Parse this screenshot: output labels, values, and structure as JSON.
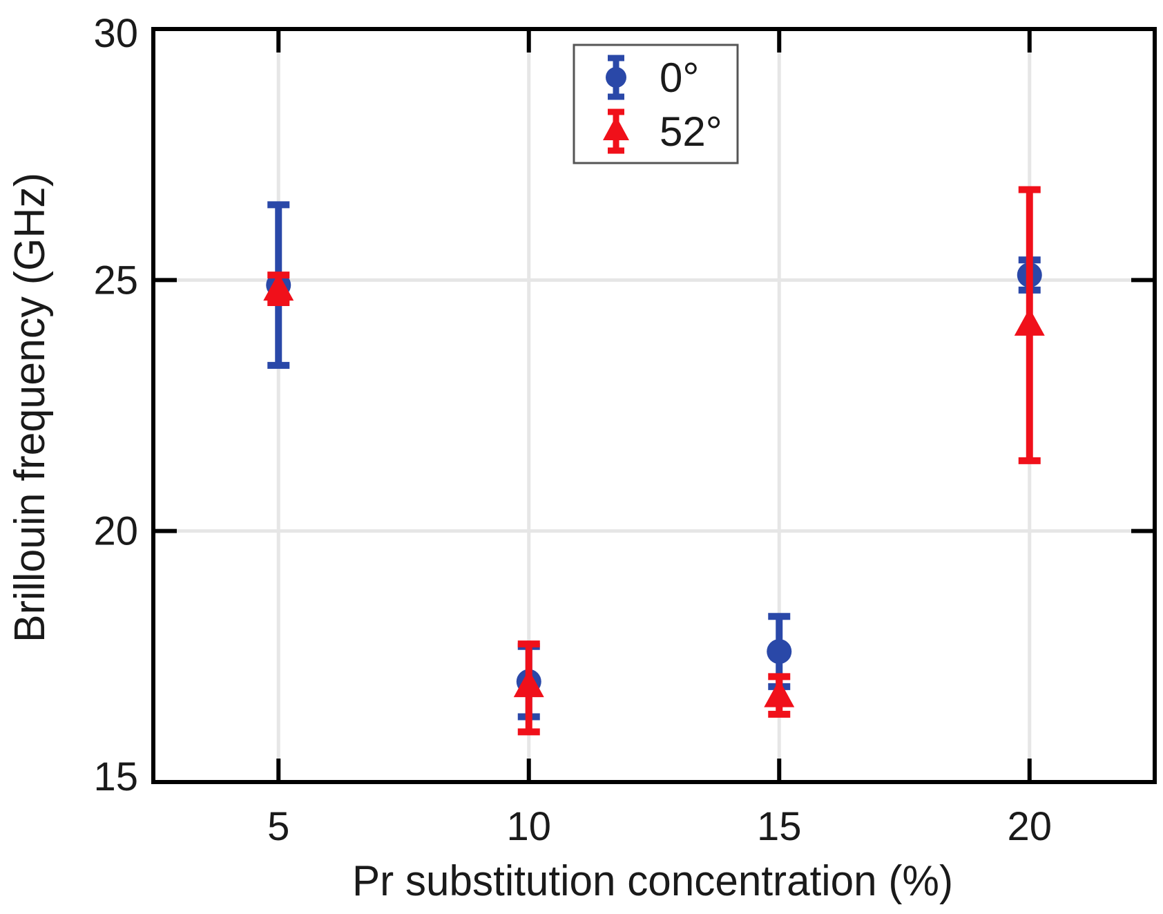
{
  "chart_data": {
    "type": "scatter",
    "title": "",
    "xlabel": "Pr substitution concentration (%)",
    "ylabel": "Brillouin frequency (GHz)",
    "xlim": [
      2.5,
      22.5
    ],
    "ylim": [
      15,
      30
    ],
    "xticks": [
      5,
      10,
      15,
      20
    ],
    "yticks": [
      15,
      20,
      25,
      30
    ],
    "xtick_labels": [
      "5",
      "10",
      "15",
      "20"
    ],
    "ytick_labels": [
      "15",
      "20",
      "25",
      "30"
    ],
    "grid": true,
    "legend_position": "top-center",
    "series": [
      {
        "name": "0°",
        "marker": "circle",
        "color": "#2a48a8",
        "points": [
          {
            "x": 5,
            "y": 24.9,
            "err_low": 23.3,
            "err_high": 26.5
          },
          {
            "x": 10,
            "y": 17.0,
            "err_low": 16.3,
            "err_high": 17.7
          },
          {
            "x": 15,
            "y": 17.6,
            "err_low": 16.9,
            "err_high": 18.3
          },
          {
            "x": 20,
            "y": 25.1,
            "err_low": 24.8,
            "err_high": 25.4
          }
        ]
      },
      {
        "name": "52°",
        "marker": "triangle",
        "color": "#f0101a",
        "points": [
          {
            "x": 5,
            "y": 24.8,
            "err_low": 24.55,
            "err_high": 25.1
          },
          {
            "x": 10,
            "y": 16.9,
            "err_low": 16.0,
            "err_high": 17.75
          },
          {
            "x": 15,
            "y": 16.7,
            "err_low": 16.35,
            "err_high": 17.1
          },
          {
            "x": 20,
            "y": 24.1,
            "err_low": 21.4,
            "err_high": 26.8
          }
        ]
      }
    ]
  }
}
